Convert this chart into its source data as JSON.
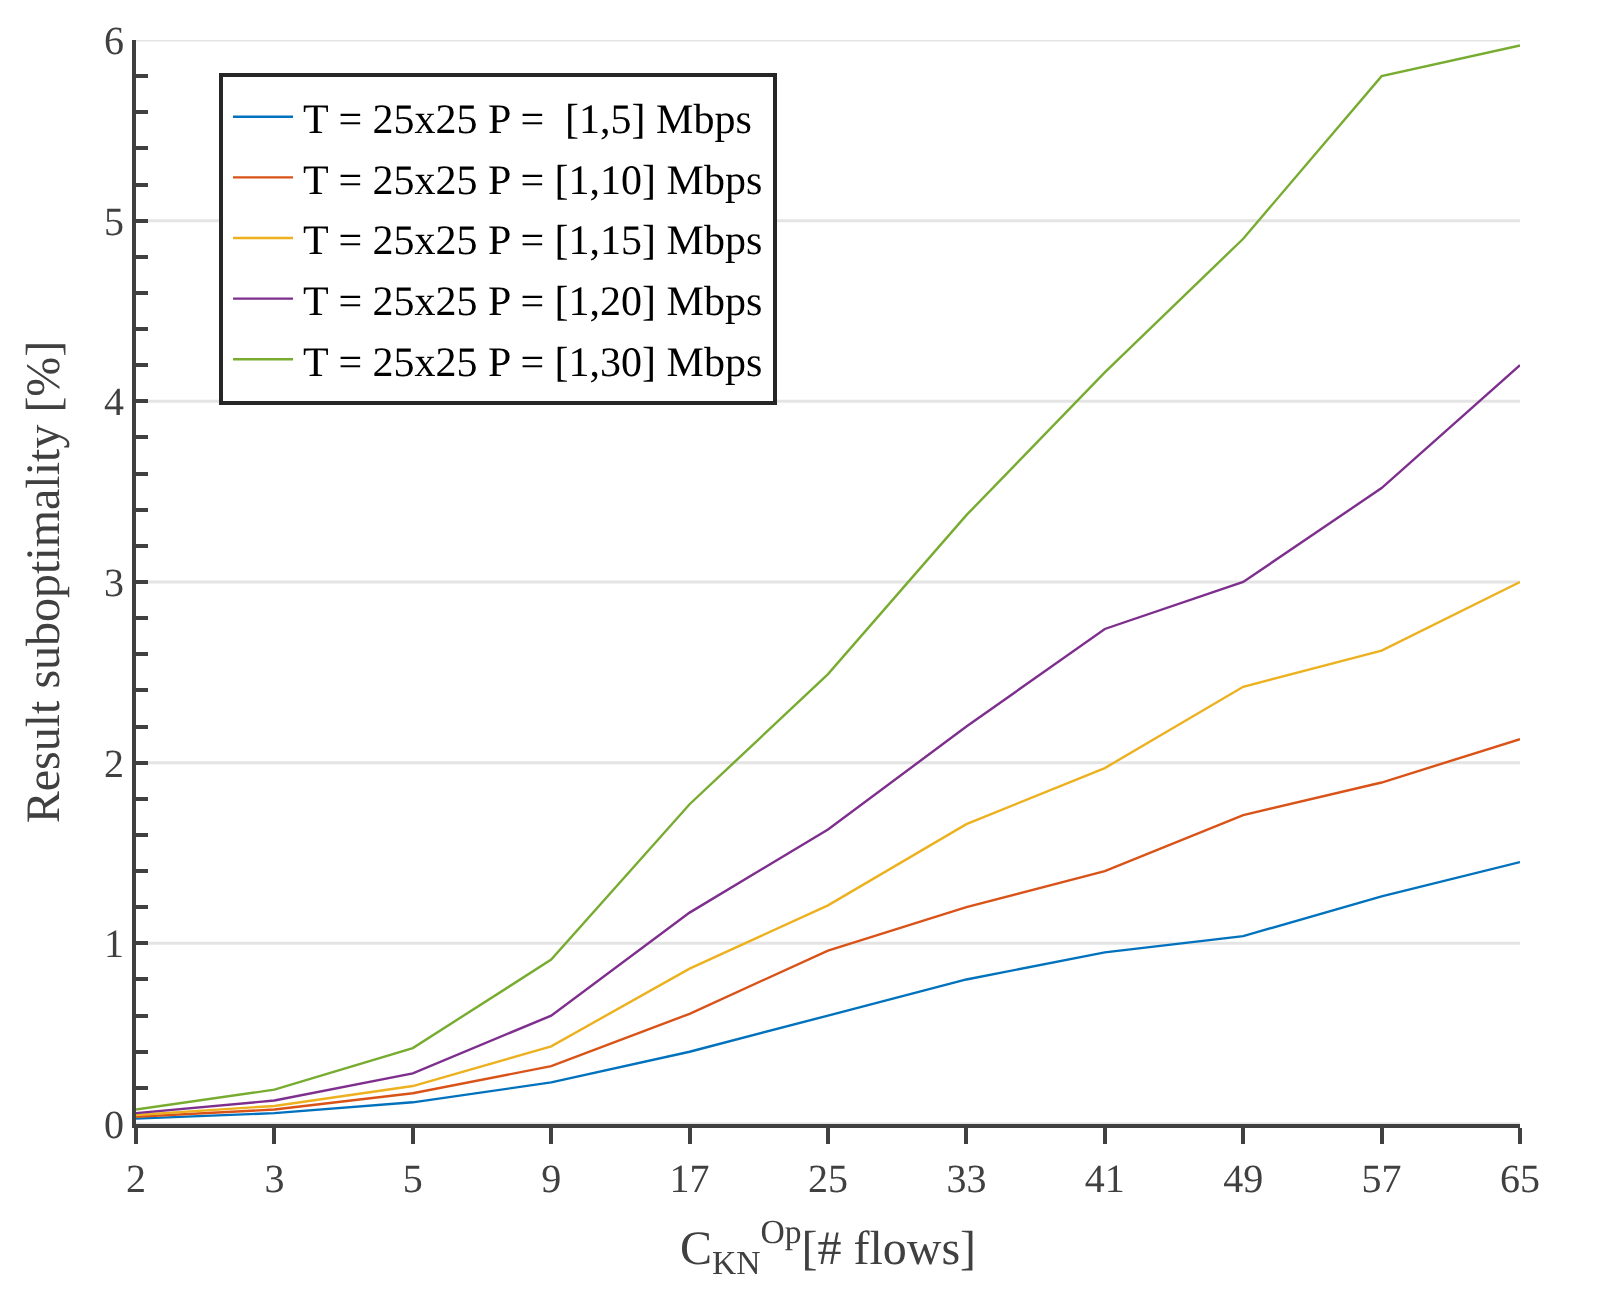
{
  "chart_data": {
    "type": "line",
    "xlabel": "C$_{KN}$$^{Op}$[# flows]",
    "ylabel": "Result suboptimality [%]",
    "categories": [
      "2",
      "3",
      "5",
      "9",
      "17",
      "25",
      "33",
      "41",
      "49",
      "57",
      "65"
    ],
    "series": [
      {
        "name": "T = 25x25 P =  [1,5] Mbps",
        "color": "#0072bd",
        "values": [
          0.03,
          0.06,
          0.12,
          0.23,
          0.4,
          0.6,
          0.8,
          0.95,
          1.04,
          1.26,
          1.45
        ]
      },
      {
        "name": "T = 25x25 P = [1,10] Mbps",
        "color": "#d95319",
        "values": [
          0.04,
          0.08,
          0.17,
          0.32,
          0.61,
          0.96,
          1.2,
          1.4,
          1.71,
          1.89,
          2.13
        ]
      },
      {
        "name": "T = 25x25 P = [1,15] Mbps",
        "color": "#edb120",
        "values": [
          0.05,
          0.1,
          0.21,
          0.43,
          0.86,
          1.21,
          1.66,
          1.97,
          2.42,
          2.62,
          3.0
        ]
      },
      {
        "name": "T = 25x25 P = [1,20] Mbps",
        "color": "#7e2f8e",
        "values": [
          0.06,
          0.13,
          0.28,
          0.6,
          1.17,
          1.63,
          2.2,
          2.74,
          3.0,
          3.52,
          4.2
        ]
      },
      {
        "name": "T = 25x25 P = [1,30] Mbps",
        "color": "#77ac30",
        "values": [
          0.08,
          0.19,
          0.42,
          0.91,
          1.77,
          2.49,
          3.37,
          4.16,
          4.9,
          5.8,
          5.97
        ]
      }
    ],
    "ylim": [
      0,
      6
    ],
    "yticks": [
      0,
      {
        "value": 0.2,
        "label": null
      },
      {
        "value": 0.4,
        "label": null
      },
      {
        "value": 0.6,
        "label": null
      },
      {
        "value": 0.8,
        "label": null
      },
      1,
      {
        "value": 1.2,
        "label": null
      },
      {
        "value": 1.4,
        "label": null
      },
      {
        "value": 1.6,
        "label": null
      },
      {
        "value": 1.8,
        "label": null
      },
      2,
      {
        "value": 2.2,
        "label": null
      },
      {
        "value": 2.4,
        "label": null
      },
      {
        "value": 2.6,
        "label": null
      },
      {
        "value": 2.8,
        "label": null
      },
      3,
      {
        "value": 3.2,
        "label": null
      },
      {
        "value": 3.4,
        "label": null
      },
      {
        "value": 3.6,
        "label": null
      },
      {
        "value": 3.8,
        "label": null
      },
      4,
      {
        "value": 4.2,
        "label": null
      },
      {
        "value": 4.4,
        "label": null
      },
      {
        "value": 4.6,
        "label": null
      },
      {
        "value": 4.8,
        "label": null
      },
      5,
      {
        "value": 5.2,
        "label": null
      },
      {
        "value": 5.4,
        "label": null
      },
      {
        "value": 5.6,
        "label": null
      },
      {
        "value": 5.8,
        "label": null
      },
      6
    ],
    "grid": "y",
    "legend": "top left",
    "marker": "none",
    "line_style": "solid"
  }
}
